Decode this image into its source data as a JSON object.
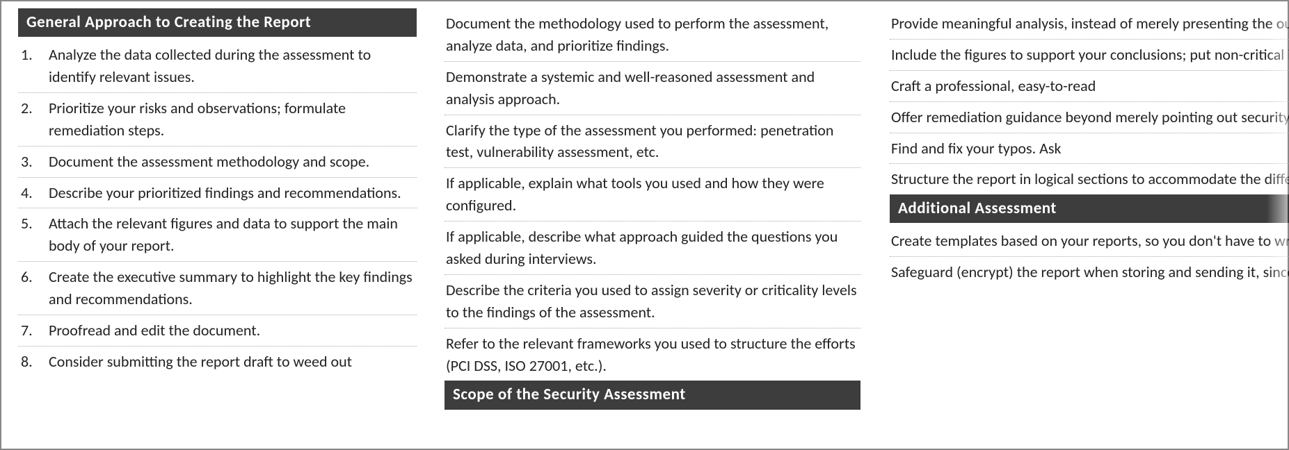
{
  "col1": {
    "header": "General Approach to Creating the Report",
    "items": [
      "Analyze the data collected during the assessment to identify relevant issues.",
      "Prioritize your risks and observations; formulate remediation steps.",
      "Document the assessment methodology and scope.",
      "Describe your prioritized findings and recommendations.",
      "Attach the relevant figures and data to support the main body of your report.",
      "Create the executive summary to highlight the key findings and recommendations.",
      "Proofread and edit the document.",
      "Consider submitting the report draft to weed out"
    ]
  },
  "col2": {
    "items_top": [
      "Document the methodology used to perform the assessment, analyze data, and prioritize findings.",
      "Demonstrate a systemic and well-reasoned assessment and analysis approach.",
      "Clarify the type of the assessment you performed: penetration test, vulnerability assessment, etc.",
      "If applicable, explain what tools you used and how they were configured.",
      "If applicable, describe what approach guided the questions you asked during interviews.",
      "Describe the criteria you used to assign severity or criticality levels to the findings of the assessment.",
      "Refer to the relevant frameworks you used to structure the efforts (PCI DSS, ISO 27001, etc.)."
    ],
    "header": "Scope of the Security Assessment"
  },
  "col3": {
    "items_top": [
      "Provide meaningful analysis, instead of merely presenting the output of the",
      "Include the figures to support your conclusions; put non-critical information in the",
      "Craft a professional, easy-to-read",
      "Offer remediation guidance beyond merely pointing out security problems.",
      "Find and fix your typos. Ask",
      "Structure the report in logical sections to accommodate the different"
    ],
    "header": "Additional Assessment",
    "items_bottom": [
      "Create templates based on your reports, so you don't have to write every document",
      "Safeguard (encrypt) the report when storing and sending it, since its content"
    ]
  }
}
